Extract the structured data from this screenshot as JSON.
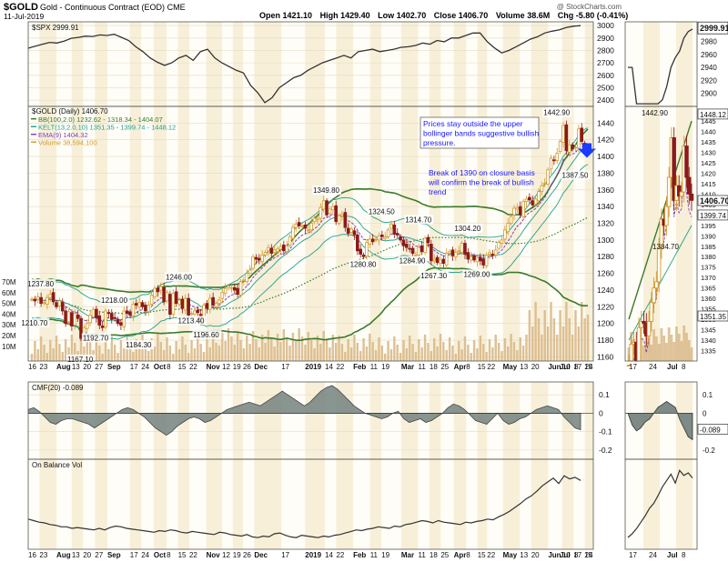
{
  "header": {
    "symbol": "$GOLD",
    "name": "Gold - Continuous Contract (EOD)",
    "exchange": "CME",
    "date": "11-Jul-2019",
    "open_label": "Open",
    "open": "1421.10",
    "high_label": "High",
    "high": "1429.40",
    "low_label": "Low",
    "low": "1402.70",
    "close_label": "Close",
    "close": "1406.70",
    "volume_label": "Volume",
    "volume": "38.6M",
    "change_label": "Chg",
    "change": "-5.80 (-0.41%)",
    "watermark": "@ StockCharts.com"
  },
  "colors": {
    "bg_band": "#f7efd8",
    "bg_band_alt": "#fffdf7",
    "candle_up": "#d49a2a",
    "candle_down": "#8b1a1a",
    "bb": "#3a7a2a",
    "kelt": "#20a090",
    "ema": "#8040c0",
    "volume": "#d9b98a",
    "cmf_fill": "#7d8a86",
    "line": "#333333",
    "annot": "#1a1aff"
  },
  "chart_data": [
    {
      "type": "line",
      "id": "spx",
      "title": "$SPX 2999.91",
      "last": "2999.91",
      "ylim": [
        2350,
        3030
      ],
      "yticks": [
        2400,
        2500,
        2600,
        2700,
        2800,
        2900,
        3000
      ],
      "zoom_yticks": [
        2900,
        2920,
        2940,
        2960,
        2980
      ],
      "values": [
        2818,
        2835,
        2850,
        2865,
        2860,
        2875,
        2898,
        2905,
        2915,
        2912,
        2925,
        2920,
        2930,
        2905,
        2880,
        2830,
        2790,
        2740,
        2705,
        2680,
        2700,
        2740,
        2760,
        2720,
        2790,
        2810,
        2740,
        2700,
        2670,
        2640,
        2620,
        2520,
        2460,
        2380,
        2420,
        2500,
        2540,
        2580,
        2600,
        2640,
        2670,
        2700,
        2720,
        2740,
        2760,
        2740,
        2790,
        2800,
        2810,
        2790,
        2800,
        2810,
        2825,
        2830,
        2840,
        2860,
        2850,
        2880,
        2870,
        2900,
        2900,
        2920,
        2940,
        2940,
        2870,
        2820,
        2780,
        2800,
        2830,
        2860,
        2890,
        2910,
        2940,
        2955,
        2965,
        2985,
        2995,
        2999
      ]
    },
    {
      "type": "candlestick",
      "id": "gold",
      "title": "$GOLD (Daily) 1406.70",
      "legend": [
        {
          "label": "BB(100,2.0) 1232.62 - 1318.34 - 1404.07",
          "color": "#3a7a2a"
        },
        {
          "label": "KELT(13,2.0,10) 1351.35 - 1399.74 - 1448.12",
          "color": "#20a090"
        },
        {
          "label": "EMA(9) 1404.32",
          "color": "#8040c0"
        },
        {
          "label": "Volume 38,594,100",
          "color": "#d49a2a"
        }
      ],
      "ylim": [
        1155,
        1460
      ],
      "yticks": [
        1160,
        1180,
        1200,
        1220,
        1240,
        1260,
        1280,
        1300,
        1320,
        1340,
        1360,
        1380,
        1400,
        1420,
        1440
      ],
      "zoom_ylim": [
        1330,
        1452
      ],
      "zoom_yticks": [
        1335,
        1340,
        1345,
        1350,
        1355,
        1360,
        1365,
        1370,
        1375,
        1380,
        1385,
        1390,
        1395,
        1400,
        1405,
        1410,
        1415,
        1420,
        1425,
        1430,
        1435,
        1440,
        1445
      ],
      "zoom_tags": [
        "1448.12",
        "1406.70",
        "1399.74",
        "1351.35"
      ],
      "volume_ticks": [
        "70M",
        "60M",
        "50M",
        "40M",
        "30M",
        "20M",
        "10M"
      ],
      "close": [
        1229,
        1227,
        1232,
        1224,
        1225,
        1231,
        1235,
        1226,
        1220,
        1227,
        1215,
        1200,
        1214,
        1197,
        1212,
        1206,
        1182,
        1195,
        1200,
        1210,
        1217,
        1207,
        1198,
        1195,
        1215,
        1212,
        1205,
        1206,
        1200,
        1198,
        1215,
        1212,
        1210,
        1223,
        1222,
        1225,
        1220,
        1215,
        1222,
        1234,
        1242,
        1238,
        1244,
        1226,
        1237,
        1211,
        1236,
        1224,
        1228,
        1218,
        1230,
        1210,
        1212,
        1215,
        1213,
        1202,
        1222,
        1218,
        1230,
        1222,
        1224,
        1228,
        1237,
        1242,
        1245,
        1243,
        1240,
        1235,
        1250,
        1252,
        1260,
        1264,
        1280,
        1277,
        1276,
        1282,
        1285,
        1291,
        1284,
        1288,
        1289,
        1292,
        1287,
        1293,
        1304,
        1315,
        1319,
        1317,
        1317,
        1314,
        1312,
        1320,
        1326,
        1325,
        1339,
        1347,
        1330,
        1337,
        1340,
        1322,
        1329,
        1331,
        1315,
        1308,
        1313,
        1306,
        1287,
        1283,
        1280,
        1297,
        1301,
        1298,
        1301,
        1305,
        1304,
        1304,
        1312,
        1319,
        1307,
        1306,
        1300,
        1293,
        1291,
        1289,
        1284,
        1282,
        1291,
        1286,
        1302,
        1297,
        1275,
        1277,
        1273,
        1276,
        1272,
        1284,
        1286,
        1281,
        1285,
        1287,
        1296,
        1283,
        1277,
        1280,
        1276,
        1279,
        1275,
        1270,
        1282,
        1285,
        1282,
        1288,
        1297,
        1300,
        1312,
        1320,
        1328,
        1338,
        1339,
        1330,
        1346,
        1349,
        1348,
        1342,
        1349,
        1358,
        1365,
        1368,
        1384,
        1398,
        1395,
        1404,
        1418,
        1437,
        1407,
        1414,
        1409,
        1411,
        1433,
        1418,
        1410,
        1407
      ],
      "labels": [
        {
          "text": "1237.80",
          "i": 3,
          "v": 1237.8,
          "pos": "above"
        },
        {
          "text": "1210.70",
          "i": 1,
          "v": 1210.7,
          "pos": "below"
        },
        {
          "text": "1167.10",
          "i": 16,
          "v": 1167.1,
          "pos": "below"
        },
        {
          "text": "1192.70",
          "i": 21,
          "v": 1192.7,
          "pos": "below"
        },
        {
          "text": "1218.00",
          "i": 27,
          "v": 1218.0,
          "pos": "above"
        },
        {
          "text": "1184.30",
          "i": 35,
          "v": 1184.3,
          "pos": "below"
        },
        {
          "text": "1246.00",
          "i": 48,
          "v": 1246.0,
          "pos": "above"
        },
        {
          "text": "1213.40",
          "i": 52,
          "v": 1213.4,
          "pos": "below"
        },
        {
          "text": "1196.60",
          "i": 57,
          "v": 1196.6,
          "pos": "below"
        },
        {
          "text": "1349.80",
          "i": 96,
          "v": 1349.8,
          "pos": "above"
        },
        {
          "text": "1324.50",
          "i": 114,
          "v": 1324.5,
          "pos": "above"
        },
        {
          "text": "1314.70",
          "i": 126,
          "v": 1314.7,
          "pos": "above"
        },
        {
          "text": "1280.80",
          "i": 108,
          "v": 1280.8,
          "pos": "below"
        },
        {
          "text": "1284.90",
          "i": 124,
          "v": 1284.9,
          "pos": "below"
        },
        {
          "text": "1304.20",
          "i": 142,
          "v": 1304.2,
          "pos": "above"
        },
        {
          "text": "1267.30",
          "i": 131,
          "v": 1267.3,
          "pos": "below"
        },
        {
          "text": "1269.00",
          "i": 145,
          "v": 1269.0,
          "pos": "below"
        },
        {
          "text": "1442.90",
          "i": 171,
          "v": 1442.9,
          "pos": "above"
        },
        {
          "text": "1387.50",
          "i": 177,
          "v": 1387.5,
          "pos": "below"
        }
      ],
      "zoom_labels": [
        {
          "text": "1442.90"
        },
        {
          "text": "1384.70"
        }
      ],
      "annotations": [
        "Prices stay outside the upper bollinger bands suggestive bullish pressure.",
        "Break of 1390 on closure basis will confirm the break of bullish trend"
      ]
    },
    {
      "type": "area",
      "id": "cmf",
      "title": "CMF(20) -0.089",
      "ylim": [
        -0.25,
        0.17
      ],
      "yticks": [
        0.1,
        0,
        -0.1,
        -0.2
      ],
      "yticks_text": [
        "0.1",
        "0",
        "-0.1",
        "-0.2"
      ],
      "last": "-0.089",
      "values": [
        0.02,
        0.03,
        0.01,
        -0.02,
        -0.05,
        -0.06,
        -0.04,
        -0.03,
        -0.03,
        -0.04,
        -0.05,
        -0.06,
        -0.08,
        -0.06,
        -0.04,
        -0.02,
        0.0,
        0.02,
        0.03,
        0.02,
        0.0,
        -0.02,
        -0.05,
        -0.08,
        -0.1,
        -0.12,
        -0.1,
        -0.07,
        -0.05,
        -0.03,
        -0.02,
        -0.03,
        -0.05,
        -0.04,
        -0.02,
        0.0,
        0.02,
        0.03,
        0.04,
        0.05,
        0.06,
        0.05,
        0.04,
        0.06,
        0.08,
        0.1,
        0.12,
        0.1,
        0.08,
        0.06,
        0.04,
        0.06,
        0.09,
        0.12,
        0.14,
        0.15,
        0.13,
        0.1,
        0.07,
        0.04,
        0.02,
        0.0,
        -0.01,
        -0.02,
        -0.03,
        -0.02,
        0.0,
        0.01,
        -0.03,
        -0.05,
        -0.04,
        -0.03,
        -0.05,
        -0.04,
        -0.02,
        0.0,
        0.03,
        0.05,
        0.04,
        0.02,
        -0.01,
        -0.04,
        -0.05,
        -0.06,
        -0.03,
        0.0,
        -0.04,
        -0.06,
        -0.05,
        -0.03,
        -0.02,
        0.0,
        0.02,
        0.03,
        0.04,
        0.03,
        0.02,
        -0.02,
        -0.05,
        -0.08,
        -0.09
      ]
    },
    {
      "type": "line",
      "id": "obv",
      "title": "On Balance Vol",
      "ylim": [
        0,
        100
      ],
      "values": [
        32,
        30,
        28,
        27,
        25,
        24,
        22,
        22,
        20,
        21,
        20,
        19,
        18,
        20,
        18,
        21,
        23,
        22,
        20,
        19,
        18,
        17,
        16,
        15,
        17,
        16,
        18,
        17,
        15,
        14,
        16,
        15,
        14,
        13,
        12,
        15,
        14,
        12,
        11,
        10,
        12,
        9,
        8,
        10,
        9,
        13,
        14,
        11,
        9,
        8,
        11,
        10,
        9,
        8,
        10,
        9,
        11,
        12,
        14,
        16,
        18,
        17,
        19,
        20,
        22,
        21,
        20,
        23,
        22,
        25,
        26,
        28,
        30,
        29,
        27,
        30,
        28,
        27,
        26,
        25,
        28,
        27,
        29,
        30,
        32,
        31,
        35,
        38,
        42,
        47,
        52,
        58,
        62,
        68,
        75,
        80,
        85,
        78,
        88,
        84,
        86,
        82
      ]
    }
  ],
  "x_axis": {
    "top_labels": [
      {
        "t": "16",
        "f": 0.0
      },
      {
        "t": "23",
        "f": 0.02
      },
      {
        "t": "Aug",
        "f": 0.05,
        "b": true
      },
      {
        "t": "13",
        "f": 0.077
      },
      {
        "t": "20",
        "f": 0.097
      },
      {
        "t": "27",
        "f": 0.118
      },
      {
        "t": "Sep",
        "f": 0.14,
        "b": true
      },
      {
        "t": "17",
        "f": 0.18
      },
      {
        "t": "24",
        "f": 0.2
      },
      {
        "t": "Oct",
        "f": 0.222,
        "b": true
      },
      {
        "t": "8",
        "f": 0.245
      },
      {
        "t": "15",
        "f": 0.265
      },
      {
        "t": "22",
        "f": 0.285
      },
      {
        "t": "Nov",
        "f": 0.315,
        "b": true
      },
      {
        "t": "12",
        "f": 0.343
      },
      {
        "t": "19",
        "f": 0.362
      },
      {
        "t": "26",
        "f": 0.38
      },
      {
        "t": "Dec",
        "f": 0.4,
        "b": true
      },
      {
        "t": "17",
        "f": 0.448
      },
      {
        "t": "2019",
        "f": 0.49,
        "b": true
      },
      {
        "t": "14",
        "f": 0.525
      },
      {
        "t": "22",
        "f": 0.545
      },
      {
        "t": "Feb",
        "f": 0.575,
        "b": true
      },
      {
        "t": "11",
        "f": 0.605
      },
      {
        "t": "19",
        "f": 0.625
      },
      {
        "t": "Mar",
        "f": 0.66,
        "b": true
      },
      {
        "t": "11",
        "f": 0.69
      },
      {
        "t": "18",
        "f": 0.71
      },
      {
        "t": "25",
        "f": 0.73
      },
      {
        "t": "Apr",
        "f": 0.753,
        "b": true
      },
      {
        "t": "8",
        "f": 0.775
      },
      {
        "t": "15",
        "f": 0.795
      },
      {
        "t": "22",
        "f": 0.812
      },
      {
        "t": "May",
        "f": 0.84,
        "b": true
      },
      {
        "t": "13",
        "f": 0.87
      },
      {
        "t": "20",
        "f": 0.89
      },
      {
        "t": "Jun",
        "f": 0.92,
        "b": true
      },
      {
        "t": "10",
        "f": 0.945
      },
      {
        "t": "17",
        "f": 0.965
      },
      {
        "t": "24",
        "f": 0.985
      }
    ],
    "tail_labels": [
      "Jul",
      "8",
      "15"
    ],
    "zoom_labels": [
      {
        "t": "17"
      },
      {
        "t": "24"
      },
      {
        "t": "Jul",
        "b": true
      },
      {
        "t": "8"
      }
    ]
  }
}
